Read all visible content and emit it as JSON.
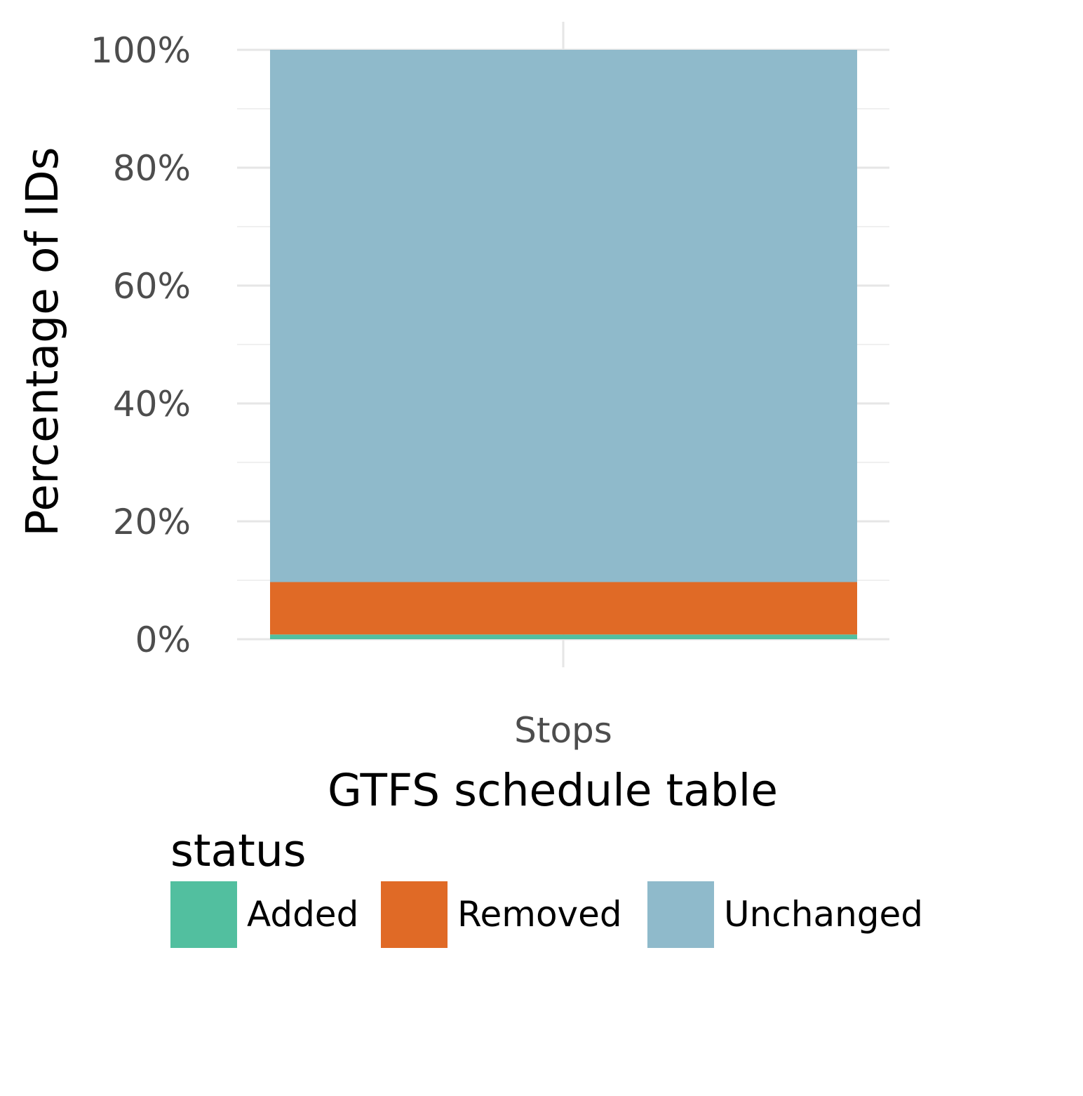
{
  "chart_data": {
    "type": "bar",
    "stacked": true,
    "categories": [
      "Stops"
    ],
    "series": [
      {
        "name": "Added",
        "values": [
          0.8
        ],
        "color": "#52bf9f"
      },
      {
        "name": "Removed",
        "values": [
          8.9
        ],
        "color": "#e06a26"
      },
      {
        "name": "Unchanged",
        "values": [
          90.3
        ],
        "color": "#8fbacb"
      }
    ],
    "xlabel": "GTFS schedule table",
    "ylabel": "Percentage of IDs",
    "ylim": [
      0,
      100
    ],
    "yticks": [
      "0%",
      "20%",
      "40%",
      "60%",
      "80%",
      "100%"
    ],
    "ytick_values": [
      0,
      20,
      40,
      60,
      80,
      100
    ],
    "grid": true,
    "legend": {
      "title": "status",
      "placement": "bottom",
      "entries": [
        "Added",
        "Removed",
        "Unchanged"
      ]
    }
  }
}
